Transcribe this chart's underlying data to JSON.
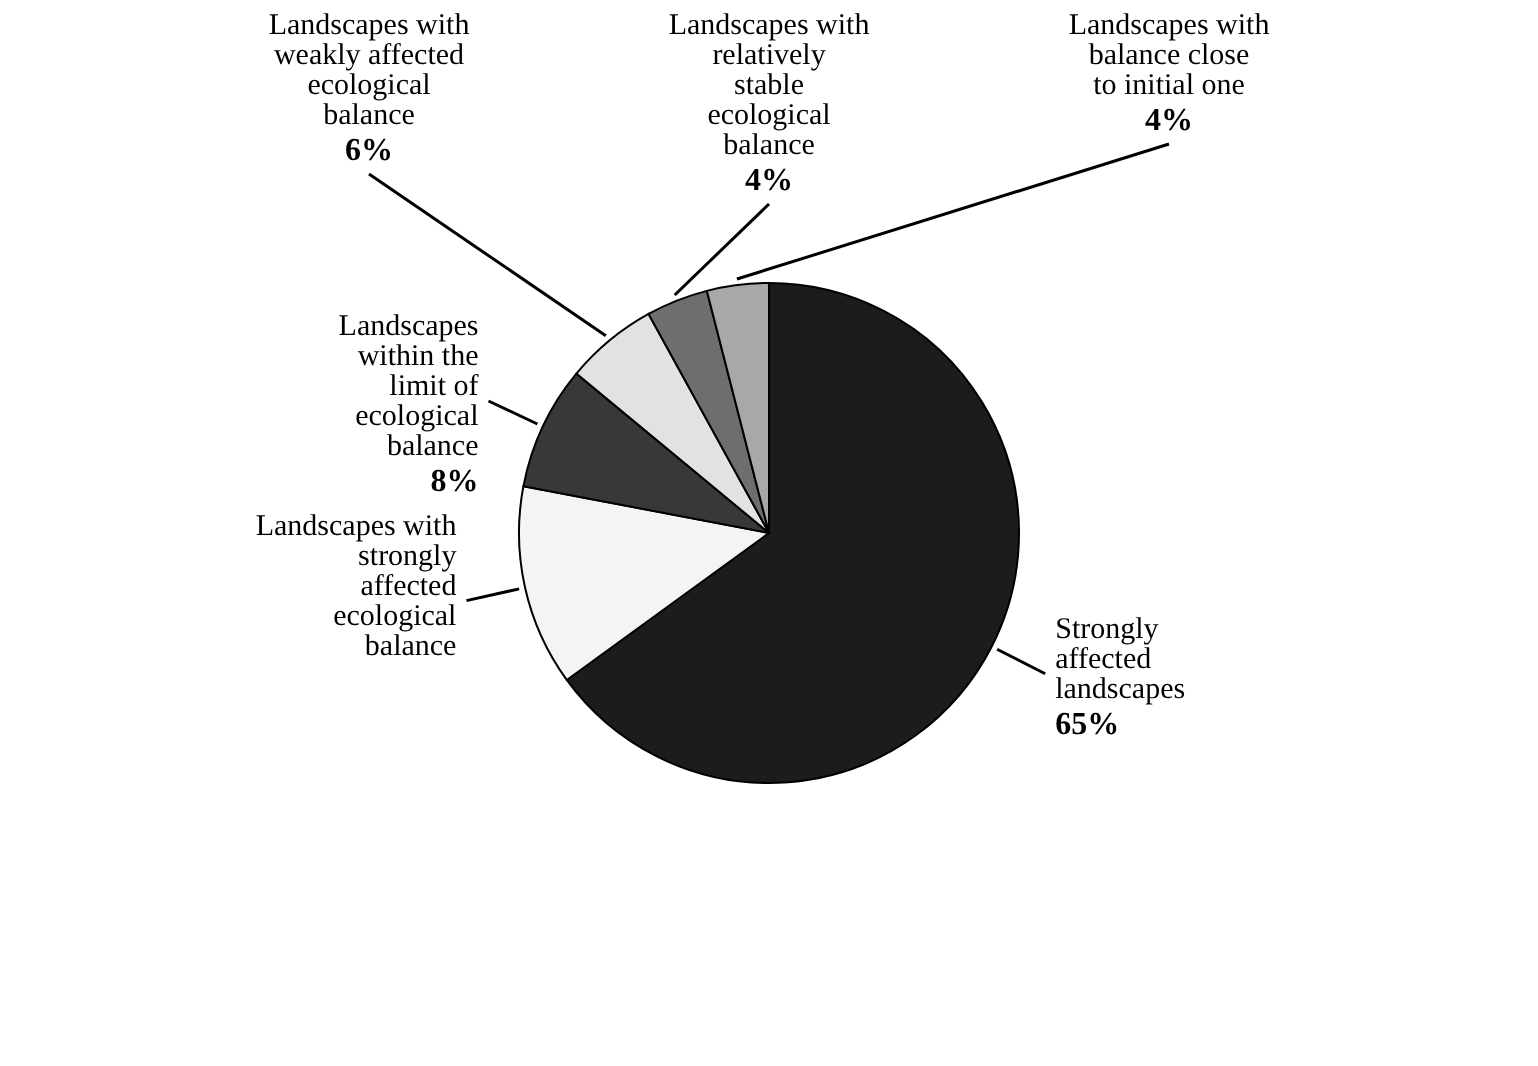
{
  "chart_data": {
    "type": "pie",
    "categories": [
      "Strongly affected landscapes",
      "Landscapes with strongly affected ecological balance",
      "Landscapes within the limit  of ecological balance",
      "Landscapes with weakly affected ecological balance",
      "Landscapes with relatively stable ecological balance",
      "Landscapes with balance close to initial one"
    ],
    "values": [
      65,
      13,
      8,
      6,
      4,
      4
    ],
    "colors": [
      "#1c1c1c",
      "#f4f4f4",
      "#383838",
      "#e2e2e2",
      "#6e6e6e",
      "#a8a8a8"
    ],
    "value_labels": [
      "65%",
      null,
      "8%",
      "6%",
      "4%",
      "4%"
    ]
  }
}
